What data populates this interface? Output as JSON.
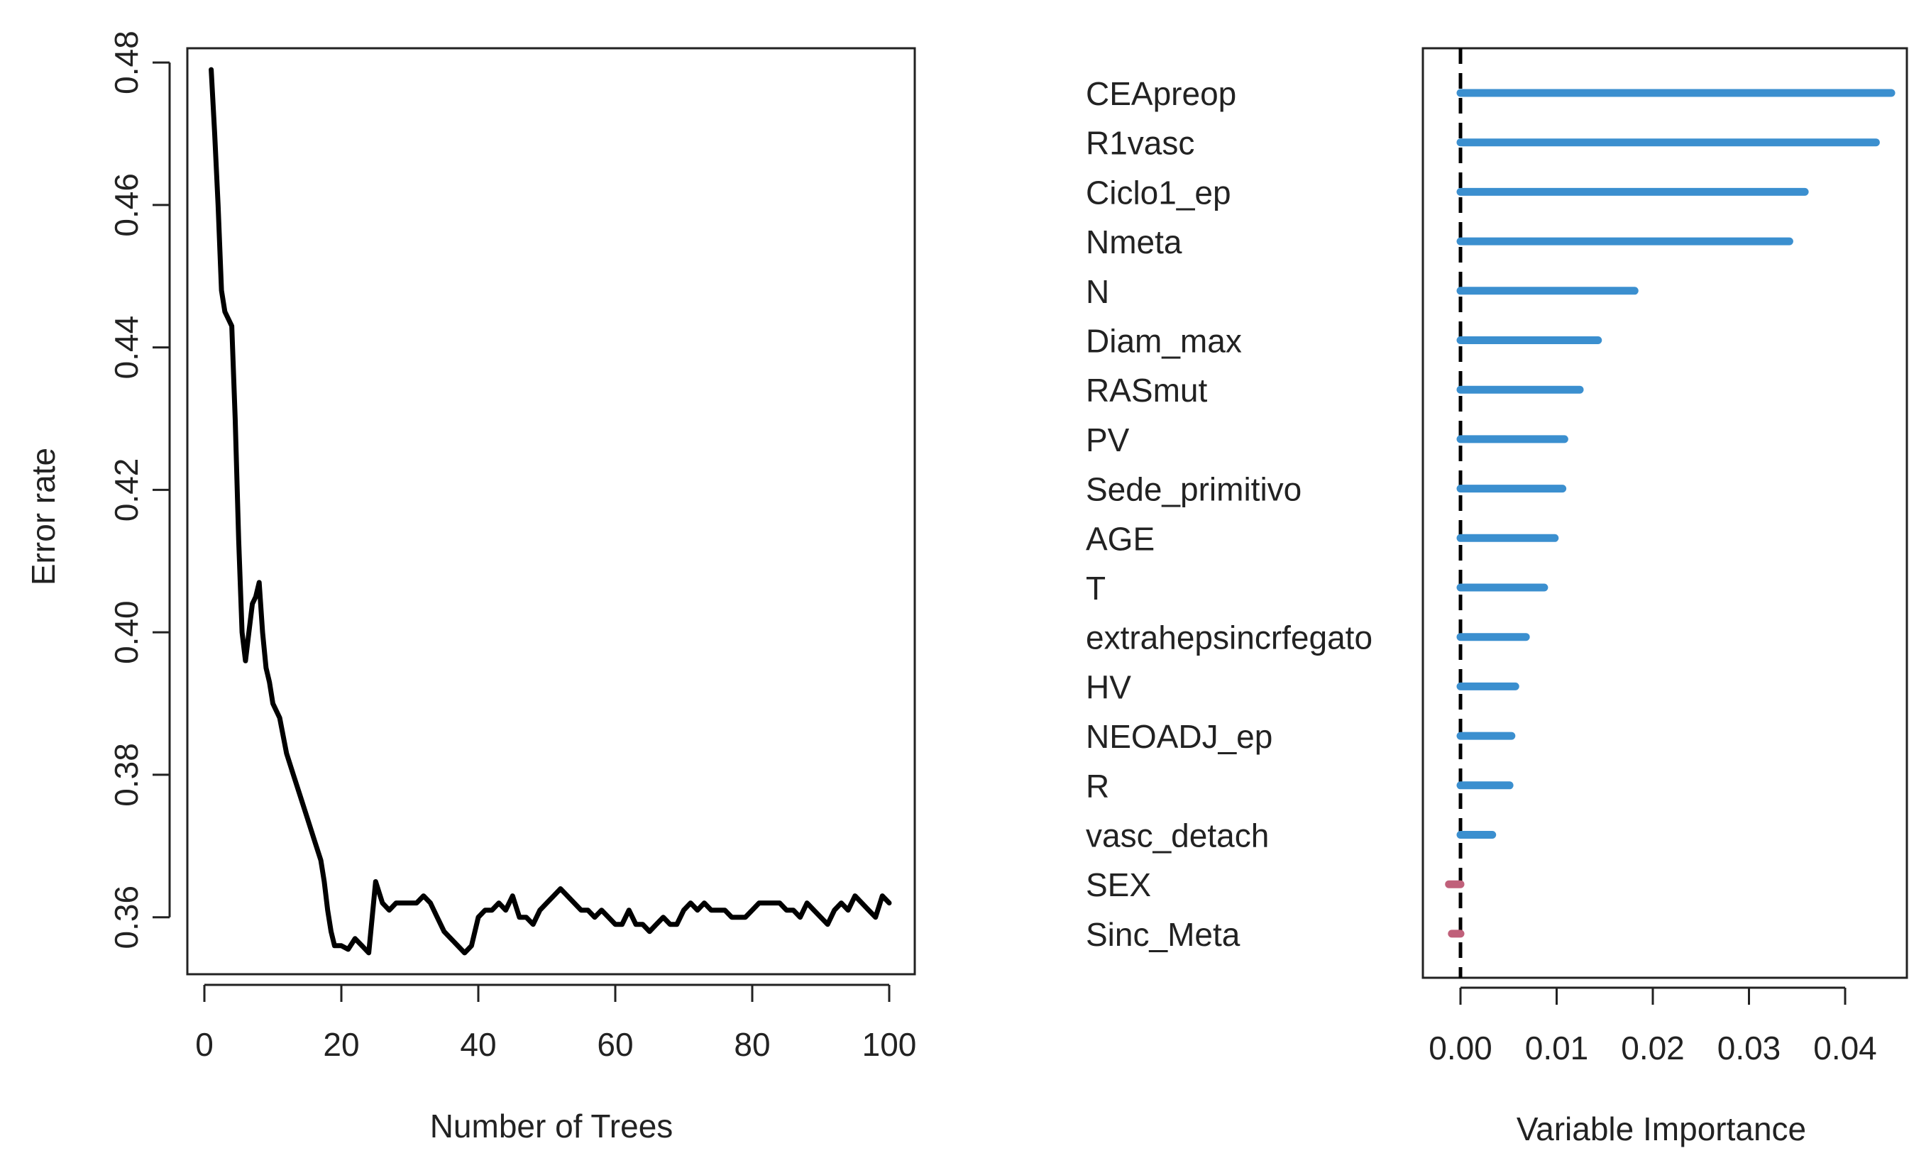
{
  "colors": {
    "line": "#000000",
    "positive_bar": "#3b8fcf",
    "negative_bar": "#c0607a",
    "zero_line": "#000000",
    "frame": "#222222"
  },
  "chart_data": [
    {
      "type": "line",
      "title": "",
      "xlabel": "Number of Trees",
      "ylabel": "Error rate",
      "xlim": [
        0,
        100
      ],
      "ylim": [
        0.352,
        0.482
      ],
      "xticks": [
        0,
        20,
        40,
        60,
        80,
        100
      ],
      "xtick_labels": [
        "0",
        "20",
        "40",
        "60",
        "80",
        "100"
      ],
      "yticks": [
        0.36,
        0.38,
        0.4,
        0.42,
        0.44,
        0.46,
        0.48
      ],
      "ytick_labels": [
        "0.36",
        "0.38",
        "0.40",
        "0.42",
        "0.44",
        "0.46",
        "0.48"
      ],
      "grid": false,
      "series": [
        {
          "name": "Error rate",
          "x": [
            1,
            1.5,
            2,
            2.5,
            3,
            3.5,
            4,
            4.5,
            5,
            5.5,
            6,
            6.5,
            7,
            7.5,
            8,
            8.5,
            9,
            9.5,
            10,
            11,
            12,
            13,
            14,
            15,
            16,
            17,
            17.5,
            18,
            18.5,
            19,
            20,
            21,
            22,
            23,
            24,
            25,
            26,
            27,
            28,
            29,
            30,
            31,
            32,
            33,
            34,
            35,
            36,
            37,
            38,
            39,
            40,
            41,
            42,
            43,
            44,
            45,
            46,
            47,
            48,
            49,
            50,
            51,
            52,
            53,
            54,
            55,
            56,
            57,
            58,
            59,
            60,
            61,
            62,
            63,
            64,
            65,
            66,
            67,
            68,
            69,
            70,
            71,
            72,
            73,
            74,
            75,
            76,
            77,
            78,
            79,
            80,
            81,
            82,
            83,
            84,
            85,
            86,
            87,
            88,
            89,
            90,
            91,
            92,
            93,
            94,
            95,
            96,
            97,
            98,
            99,
            100
          ],
          "values": [
            0.479,
            0.47,
            0.46,
            0.448,
            0.445,
            0.444,
            0.443,
            0.43,
            0.413,
            0.4,
            0.396,
            0.4,
            0.404,
            0.405,
            0.407,
            0.4,
            0.395,
            0.393,
            0.39,
            0.388,
            0.383,
            0.38,
            0.377,
            0.374,
            0.371,
            0.368,
            0.365,
            0.361,
            0.358,
            0.356,
            0.356,
            0.3555,
            0.357,
            0.356,
            0.355,
            0.365,
            0.362,
            0.361,
            0.362,
            0.362,
            0.362,
            0.362,
            0.363,
            0.362,
            0.36,
            0.358,
            0.357,
            0.356,
            0.355,
            0.356,
            0.36,
            0.361,
            0.361,
            0.362,
            0.361,
            0.363,
            0.36,
            0.36,
            0.359,
            0.361,
            0.362,
            0.363,
            0.364,
            0.363,
            0.362,
            0.361,
            0.361,
            0.36,
            0.361,
            0.36,
            0.359,
            0.359,
            0.361,
            0.359,
            0.359,
            0.358,
            0.359,
            0.36,
            0.359,
            0.359,
            0.361,
            0.362,
            0.361,
            0.362,
            0.361,
            0.361,
            0.361,
            0.36,
            0.36,
            0.36,
            0.361,
            0.362,
            0.362,
            0.362,
            0.362,
            0.361,
            0.361,
            0.36,
            0.362,
            0.361,
            0.36,
            0.359,
            0.361,
            0.362,
            0.361,
            0.363,
            0.362,
            0.361,
            0.36,
            0.363,
            0.362
          ]
        }
      ]
    },
    {
      "type": "bar",
      "orientation": "horizontal",
      "title": "",
      "xlabel": "Variable Importance",
      "ylabel": "",
      "xlim": [
        -0.003,
        0.047
      ],
      "xticks": [
        0.0,
        0.01,
        0.02,
        0.03,
        0.04
      ],
      "xtick_labels": [
        "0.00",
        "0.01",
        "0.02",
        "0.03",
        "0.04"
      ],
      "grid": false,
      "reference_line": 0,
      "categories": [
        "CEApreop",
        "R1vasc",
        "Ciclo1_ep",
        "Nmeta",
        "N",
        "Diam_max",
        "RASmut",
        "PV",
        "Sede_primitivo",
        "AGE",
        "T",
        "extrahepsincrfegato",
        "HV",
        "NEOADJ_ep",
        "R",
        "vasc_detach",
        "SEX",
        "Sinc_Meta"
      ],
      "values": [
        0.0448,
        0.0432,
        0.0358,
        0.0342,
        0.0181,
        0.0143,
        0.0124,
        0.0108,
        0.0106,
        0.0098,
        0.0087,
        0.0068,
        0.0057,
        0.0053,
        0.0051,
        0.0033,
        -0.0012,
        -0.0009
      ]
    }
  ]
}
